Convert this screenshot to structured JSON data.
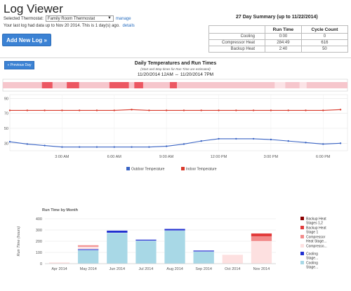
{
  "header": {
    "title": "Log Viewer",
    "selected_label": "Selected Thermostat:",
    "thermostat_value": "Family Room Thermostat",
    "manage_label": "manage",
    "last_log_text": "Your last log had data up to Nov 20 2014. This is 1 day(s) ago.",
    "details_label": "details",
    "add_log_label": "Add New Log »"
  },
  "summary": {
    "title": "27 Day Summary (up to 11/22/2014)",
    "columns": [
      "",
      "Run Time",
      "Cycle Count"
    ],
    "rows": [
      {
        "label": "Cooling",
        "run_time": "0:00",
        "cycles": "0"
      },
      {
        "label": "Compressor Heat",
        "run_time": "284:49",
        "cycles": "616"
      },
      {
        "label": "Backup Heat",
        "run_time": "2:40",
        "cycles": "50"
      }
    ]
  },
  "daily": {
    "prev_label": "« Previous Day",
    "title": "Daily Temperatures and Run Times",
    "note": "(Start and Stop times for Run Time are estimated)",
    "range": "11/20/2014 12AM  ⇔  11/20/2014 7PM",
    "colors": {
      "light": "#f6c6cc",
      "dark": "#ec5762",
      "outdoor": "#3a64c4",
      "indoor": "#d9392b"
    },
    "runtime_segments": [
      {
        "start": 0.0,
        "end": 2.2,
        "level": "light"
      },
      {
        "start": 2.2,
        "end": 2.8,
        "level": "dark"
      },
      {
        "start": 2.8,
        "end": 3.6,
        "level": "light"
      },
      {
        "start": 3.6,
        "end": 4.3,
        "level": "dark"
      },
      {
        "start": 4.3,
        "end": 6.0,
        "level": "light"
      },
      {
        "start": 6.0,
        "end": 7.1,
        "level": "dark"
      },
      {
        "start": 7.1,
        "end": 7.4,
        "level": "light"
      },
      {
        "start": 7.4,
        "end": 7.9,
        "level": "dark"
      },
      {
        "start": 7.9,
        "end": 9.4,
        "level": "light"
      },
      {
        "start": 9.4,
        "end": 9.8,
        "level": "dark"
      },
      {
        "start": 9.8,
        "end": 15.3,
        "level": "light"
      },
      {
        "start": 15.9,
        "end": 16.7,
        "level": "light"
      },
      {
        "start": 17.1,
        "end": 19.4,
        "level": "light"
      }
    ],
    "x_ticks": [
      {
        "hour": 3,
        "label": "3:00 AM"
      },
      {
        "hour": 6,
        "label": "6:00 AM"
      },
      {
        "hour": 9,
        "label": "9:00 AM"
      },
      {
        "hour": 12,
        "label": "12:00 PM"
      },
      {
        "hour": 15,
        "label": "3:00 PM"
      },
      {
        "hour": 18,
        "label": "6:00 PM"
      }
    ],
    "y_ticks": [
      30,
      50,
      70,
      90
    ],
    "legend": [
      "Outdoor Temperature",
      "Indoor Temperature"
    ]
  },
  "chart_data": [
    {
      "type": "line",
      "title": "Daily Temperatures and Run Times",
      "x_unit": "hour",
      "x": [
        0,
        1,
        2,
        3,
        4,
        5,
        6,
        7,
        8,
        9,
        10,
        11,
        12,
        13,
        14,
        15,
        16,
        17,
        18,
        19
      ],
      "ylim": [
        20,
        95
      ],
      "y_ticks": [
        30,
        50,
        70,
        90
      ],
      "grid": true,
      "legend_position": "bottom",
      "series": [
        {
          "name": "Outdoor Temperature",
          "values": [
            32,
            29,
            27,
            25,
            25,
            25,
            25,
            25,
            25,
            26,
            29,
            33,
            36,
            36,
            36,
            35,
            33,
            31,
            29,
            30
          ]
        },
        {
          "name": "Indoor Temperature",
          "values": [
            74,
            74,
            74,
            74,
            74,
            74,
            74,
            75,
            74,
            74,
            74,
            74,
            74,
            74,
            74,
            74,
            74,
            74,
            74,
            75
          ]
        }
      ]
    },
    {
      "type": "bar",
      "title": "Run Time by Month",
      "ylabel": "Run Time (hours)",
      "ylim": [
        0,
        400
      ],
      "y_ticks": [
        0,
        100,
        200,
        300,
        400
      ],
      "categories": [
        "Apr 2014",
        "May 2014",
        "Jun 2014",
        "Jul 2014",
        "Aug 2014",
        "Sep 2014",
        "Oct 2014",
        "Nov 2014"
      ],
      "stacked": true,
      "grid": true,
      "legend_position": "right",
      "series": [
        {
          "name": "Cooling Stage...",
          "color": "#a8d8e6",
          "values": [
            0,
            120,
            275,
            205,
            295,
            108,
            0,
            0
          ]
        },
        {
          "name": "Cooling Stage...",
          "color": "#1f2fd0",
          "values": [
            0,
            10,
            20,
            10,
            15,
            10,
            0,
            0
          ]
        },
        {
          "name": "Compresso...",
          "color": "#fde0e0",
          "values": [
            12,
            20,
            0,
            0,
            0,
            0,
            80,
            200
          ]
        },
        {
          "name": "Compressor Heat Stage...",
          "color": "#f28a8a",
          "values": [
            0,
            15,
            0,
            0,
            0,
            0,
            0,
            40
          ]
        },
        {
          "name": "Backup Heat Stage 1",
          "color": "#e23b3b",
          "values": [
            0,
            0,
            0,
            0,
            0,
            0,
            0,
            30
          ]
        },
        {
          "name": "Backup Heat Stages 1,2",
          "color": "#8b0000",
          "values": [
            0,
            0,
            0,
            0,
            0,
            0,
            0,
            0
          ]
        }
      ],
      "legend": [
        {
          "label": "Backup Heat Stages 1,2",
          "color": "#8b0000"
        },
        {
          "label": "Backup Heat Stage 1",
          "color": "#e23b3b"
        },
        {
          "label": "Compressor Heat Stage...",
          "color": "#f28a8a"
        },
        {
          "label": "Compresso...",
          "color": "#fde0e0"
        },
        {
          "label": "Cooling Stage...",
          "color": "#1f2fd0"
        },
        {
          "label": "Cooling Stage...",
          "color": "#a8d8e6"
        }
      ]
    }
  ]
}
